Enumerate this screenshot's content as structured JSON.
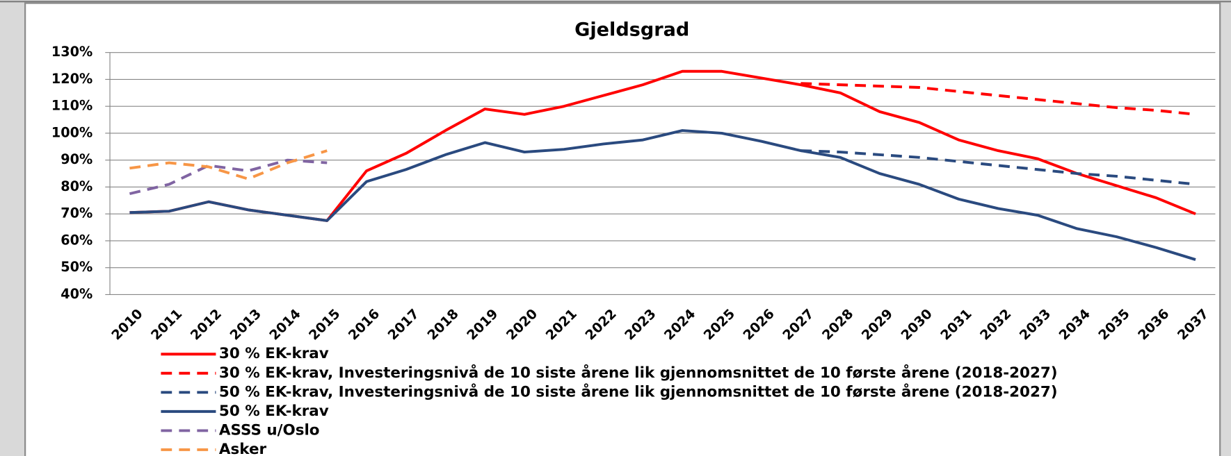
{
  "chart_data": {
    "type": "line",
    "title": "Gjeldsgrad",
    "categories": [
      "2010",
      "2011",
      "2012",
      "2013",
      "2014",
      "2015",
      "2016",
      "2017",
      "2018",
      "2019",
      "2020",
      "2021",
      "2022",
      "2023",
      "2024",
      "2025",
      "2026",
      "2027",
      "2028",
      "2029",
      "2030",
      "2031",
      "2032",
      "2033",
      "2034",
      "2035",
      "2036",
      "2037"
    ],
    "ylim": [
      40,
      130
    ],
    "yticks": [
      {
        "value": 40,
        "label": "40%"
      },
      {
        "value": 50,
        "label": "50%"
      },
      {
        "value": 60,
        "label": "60%"
      },
      {
        "value": 70,
        "label": "70%"
      },
      {
        "value": 80,
        "label": "80%"
      },
      {
        "value": 90,
        "label": "90%"
      },
      {
        "value": 100,
        "label": "100%"
      },
      {
        "value": 110,
        "label": "110%"
      },
      {
        "value": 120,
        "label": "120%"
      },
      {
        "value": 130,
        "label": "130%"
      }
    ],
    "grid": true,
    "series": [
      {
        "name": "30 % EK-krav",
        "color": "#ff0000",
        "dashed": false,
        "values": [
          70.5,
          71,
          74.5,
          71.5,
          69.5,
          67.5,
          86,
          92.5,
          101,
          109,
          107,
          110,
          114,
          118,
          123,
          123,
          120.5,
          118,
          115,
          108,
          104,
          97.5,
          93.5,
          90.5,
          85,
          80.5,
          76,
          70
        ]
      },
      {
        "name": "30 % EK-krav, Investeringsnivå de 10 siste årene lik gjennomsnittet de 10 første årene (2018-2027)",
        "color": "#ff0000",
        "dashed": true,
        "values": [
          null,
          null,
          null,
          null,
          null,
          null,
          null,
          null,
          null,
          null,
          null,
          null,
          null,
          null,
          null,
          null,
          null,
          118.5,
          118,
          117.5,
          117,
          115.5,
          114,
          112.5,
          111,
          109.5,
          108.5,
          107
        ]
      },
      {
        "name": "50 % EK-krav, Investeringsnivå de 10 siste årene lik gjennomsnittet de 10 første årene (2018-2027)",
        "color": "#2a4a7f",
        "dashed": true,
        "values": [
          null,
          null,
          null,
          null,
          null,
          null,
          null,
          null,
          null,
          null,
          null,
          null,
          null,
          null,
          null,
          null,
          null,
          93.5,
          93,
          92,
          91,
          89.5,
          88,
          86.5,
          85,
          84,
          82.5,
          81
        ]
      },
      {
        "name": "50 % EK-krav",
        "color": "#2a4a7f",
        "dashed": false,
        "values": [
          70.5,
          71,
          74.5,
          71.5,
          69.5,
          67.5,
          82,
          86.5,
          92,
          96.5,
          93,
          94,
          96,
          97.5,
          101,
          100,
          97,
          93.5,
          91,
          85,
          81,
          75.5,
          72,
          69.5,
          64.5,
          61.5,
          57.5,
          53
        ]
      },
      {
        "name": "ASSS u/Oslo",
        "color": "#8064a2",
        "dashed": true,
        "values": [
          77.5,
          81,
          88,
          86,
          90,
          89,
          null,
          null,
          null,
          null,
          null,
          null,
          null,
          null,
          null,
          null,
          null,
          null,
          null,
          null,
          null,
          null,
          null,
          null,
          null,
          null,
          null,
          null
        ]
      },
      {
        "name": "Asker",
        "color": "#f79646",
        "dashed": true,
        "values": [
          87,
          89,
          87.5,
          83,
          89,
          93.5,
          null,
          null,
          null,
          null,
          null,
          null,
          null,
          null,
          null,
          null,
          null,
          null,
          null,
          null,
          null,
          null,
          null,
          null,
          null,
          null,
          null,
          null
        ]
      }
    ]
  }
}
